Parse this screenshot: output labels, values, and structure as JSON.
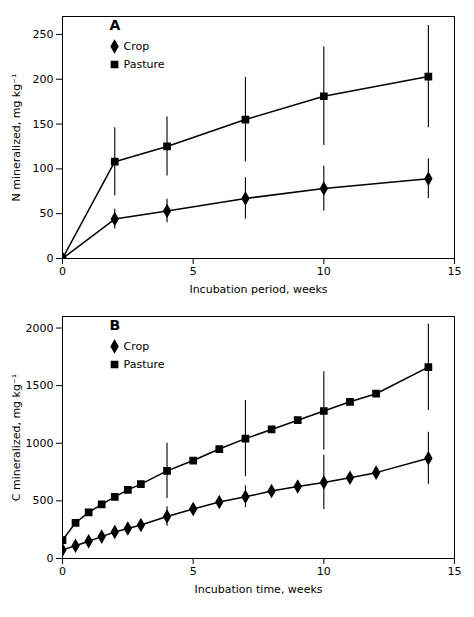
{
  "chart_data": [
    {
      "type": "line",
      "title": "A",
      "xlabel": "Incubation period, weeks",
      "ylabel": "N mineralized, mg kg⁻¹",
      "xlim": [
        0,
        15
      ],
      "ylim": [
        0,
        270
      ],
      "xticks": [
        0,
        5,
        10,
        15
      ],
      "yticks": [
        0,
        50,
        100,
        150,
        200,
        250
      ],
      "grid": false,
      "legend": "upper left",
      "x": [
        0,
        2,
        4,
        7,
        10,
        14
      ],
      "series": [
        {
          "name": "Crop",
          "color": "black",
          "marker": "diamond",
          "line_style": "solid",
          "values": [
            0,
            44,
            53,
            67,
            78,
            89
          ],
          "yerr": [
            0,
            11,
            13,
            23,
            25,
            22
          ]
        },
        {
          "name": "Pasture",
          "color": "black",
          "marker": "square",
          "line_style": "solid",
          "values": [
            0,
            108,
            125,
            155,
            181,
            203
          ],
          "yerr": [
            0,
            38,
            33,
            47,
            55,
            57
          ]
        }
      ]
    },
    {
      "type": "line",
      "title": "B",
      "xlabel": "Incubation time, weeks",
      "ylabel": "C mineralized, mg kg⁻¹",
      "xlim": [
        0,
        15
      ],
      "ylim": [
        0,
        2100
      ],
      "xticks": [
        0,
        5,
        10,
        15
      ],
      "yticks": [
        0,
        500,
        1000,
        1500,
        2000
      ],
      "grid": false,
      "legend": "upper left",
      "x": [
        0,
        0.5,
        1,
        1.5,
        2,
        2.5,
        3,
        4,
        5,
        6,
        7,
        8,
        9,
        10,
        11,
        12,
        14
      ],
      "series": [
        {
          "name": "Crop",
          "color": "black",
          "marker": "diamond",
          "line_style": "solid",
          "values": [
            75,
            110,
            150,
            190,
            230,
            260,
            290,
            365,
            430,
            490,
            535,
            585,
            625,
            660,
            700,
            745,
            870
          ],
          "yerr_x": [
            4,
            7,
            10,
            14
          ],
          "yerr": [
            85,
            95,
            235,
            225
          ]
        },
        {
          "name": "Pasture",
          "color": "black",
          "marker": "square",
          "line_style": "solid",
          "values": [
            160,
            310,
            400,
            470,
            535,
            595,
            645,
            760,
            850,
            950,
            1040,
            1120,
            1200,
            1280,
            1360,
            1430,
            1660
          ],
          "yerr_x": [
            4,
            7,
            10,
            14
          ],
          "yerr": [
            240,
            330,
            340,
            375
          ]
        }
      ]
    }
  ]
}
